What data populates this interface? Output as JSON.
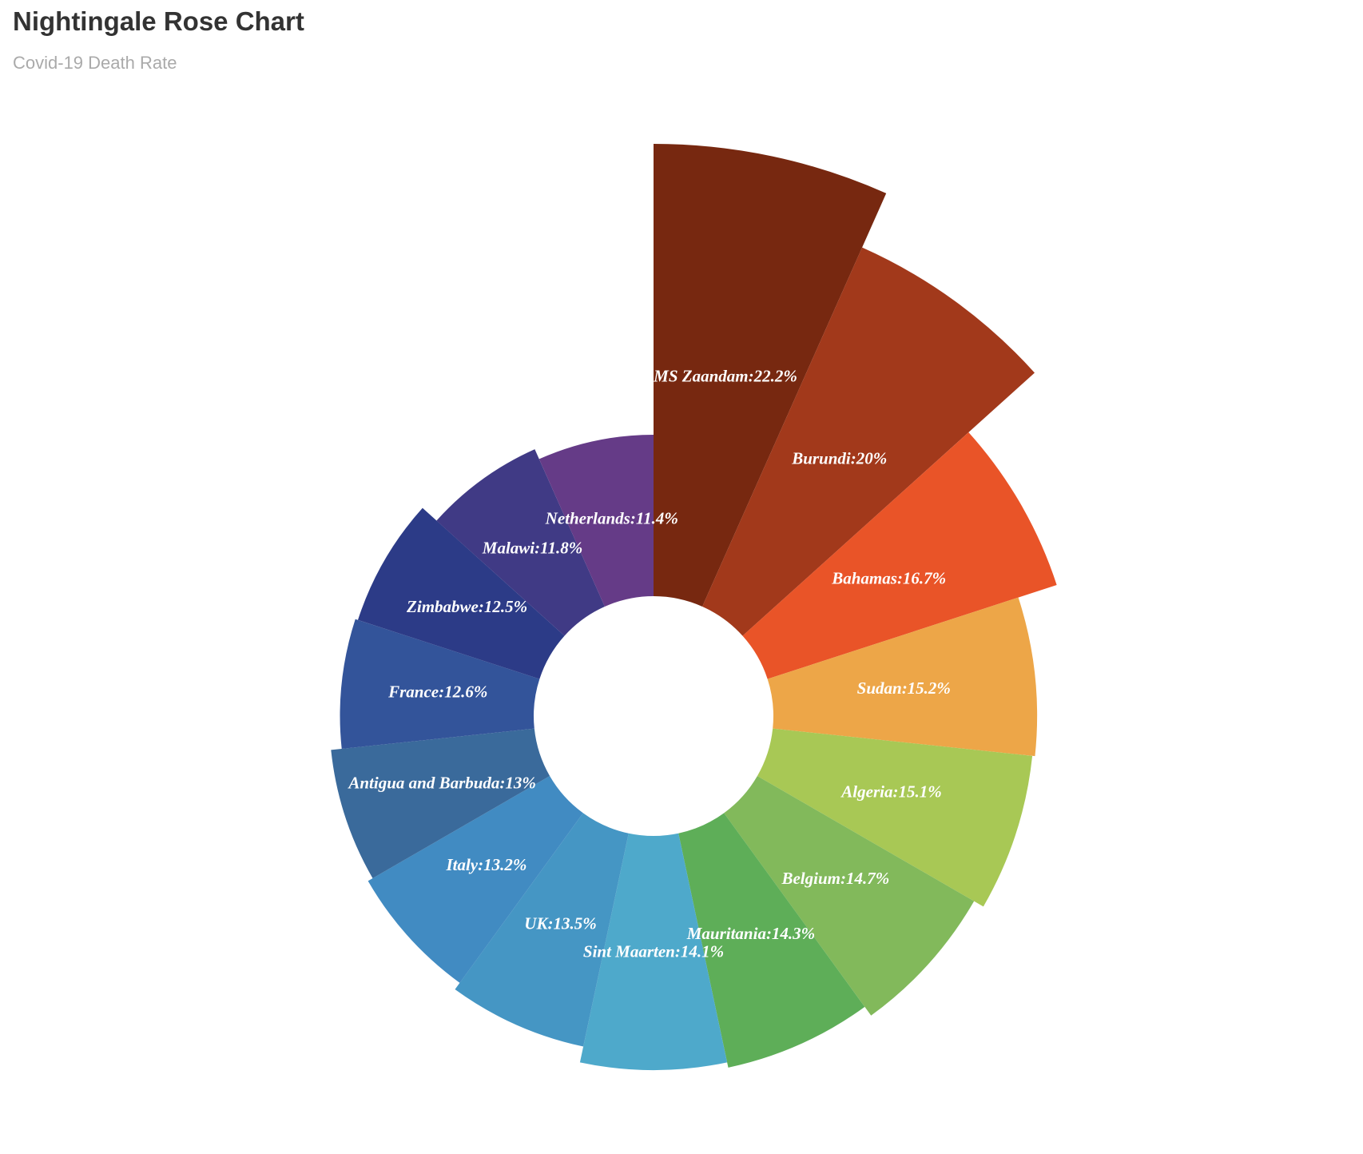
{
  "title": "Nightingale Rose Chart",
  "subtitle": "Covid-19 Death Rate",
  "chart_data": {
    "type": "pie",
    "subtype": "nightingale-rose",
    "title": "Nightingale Rose Chart",
    "subtitle": "Covid-19 Death Rate",
    "unit": "%",
    "label_format": "{name}:{value}%",
    "start": "12 o'clock, clockwise, descending values",
    "data": [
      {
        "name": "MS Zaandam",
        "value": 22.2,
        "color": "#772810"
      },
      {
        "name": "Burundi",
        "value": 20,
        "color": "#a2391b"
      },
      {
        "name": "Bahamas",
        "value": 16.7,
        "color": "#e95428"
      },
      {
        "name": "Sudan",
        "value": 15.2,
        "color": "#eda648"
      },
      {
        "name": "Algeria",
        "value": 15.1,
        "color": "#a8c855"
      },
      {
        "name": "Belgium",
        "value": 14.7,
        "color": "#82b95b"
      },
      {
        "name": "Mauritania",
        "value": 14.3,
        "color": "#5eae58"
      },
      {
        "name": "Sint Maarten",
        "value": 14.1,
        "color": "#4ea9cb"
      },
      {
        "name": "UK",
        "value": 13.5,
        "color": "#4596c4"
      },
      {
        "name": "Italy",
        "value": 13.2,
        "color": "#418bc2"
      },
      {
        "name": "Antigua and Barbuda",
        "value": 13,
        "color": "#3a6a9b"
      },
      {
        "name": "France",
        "value": 12.6,
        "color": "#33549a"
      },
      {
        "name": "Zimbabwe",
        "value": 12.5,
        "color": "#2c3b87"
      },
      {
        "name": "Malawi",
        "value": 11.8,
        "color": "#403a85"
      },
      {
        "name": "Netherlands",
        "value": 11.4,
        "color": "#653b87"
      }
    ]
  }
}
